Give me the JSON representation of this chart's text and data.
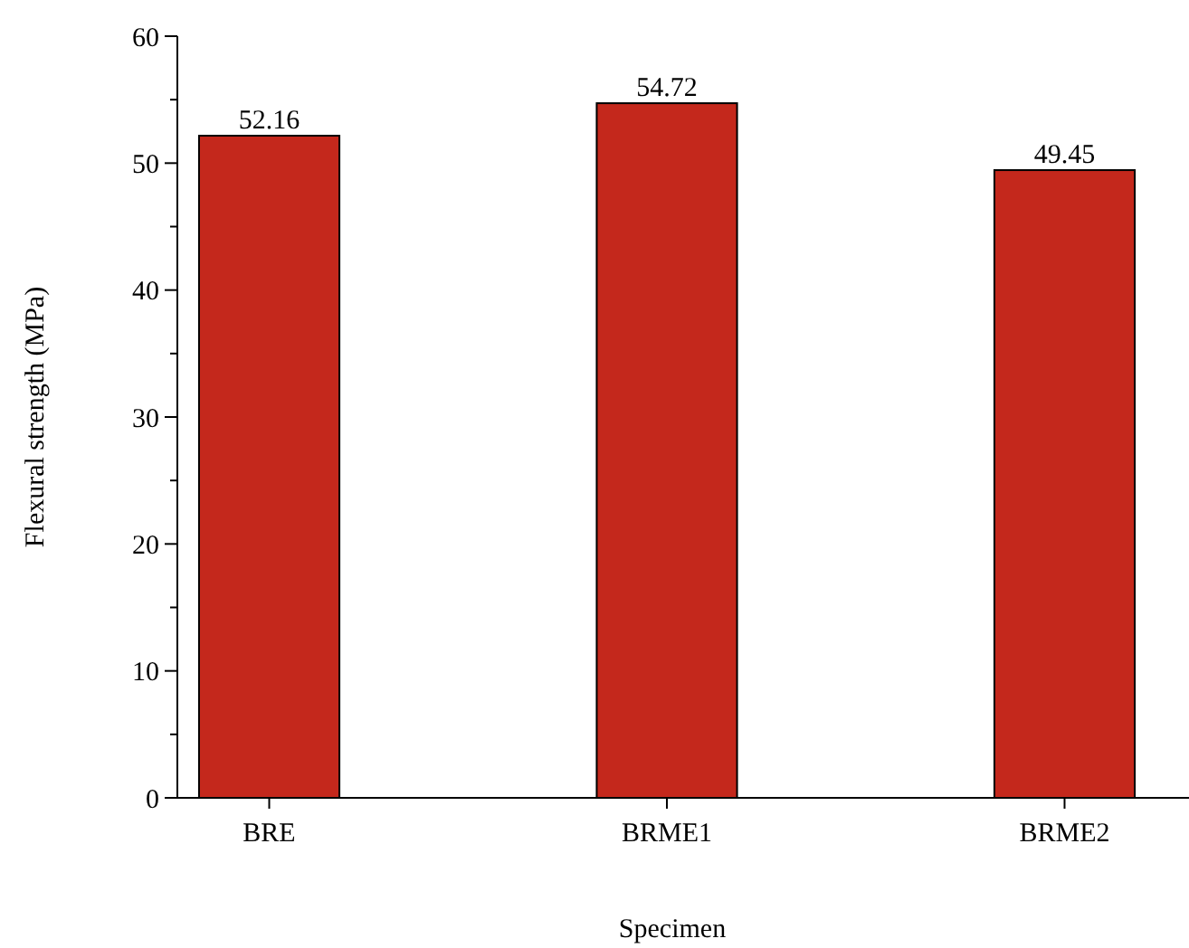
{
  "chart_data": {
    "type": "bar",
    "xlabel": "Specimen",
    "ylabel": "Flexural strength (MPa)",
    "categories": [
      "BRE",
      "BRME1",
      "BRME2"
    ],
    "values": [
      52.16,
      54.72,
      49.45
    ],
    "color": "#c4281c",
    "data_labels": true,
    "ylim": [
      0,
      60
    ],
    "yticks": [
      0,
      {
        "value": 5,
        "label": null
      },
      10,
      {
        "value": 15,
        "label": null
      },
      20,
      {
        "value": 25,
        "label": null
      },
      30,
      {
        "value": 35,
        "label": null
      },
      40,
      {
        "value": 45,
        "label": null
      },
      50,
      {
        "value": 55,
        "label": null
      },
      60
    ],
    "grid": false
  }
}
